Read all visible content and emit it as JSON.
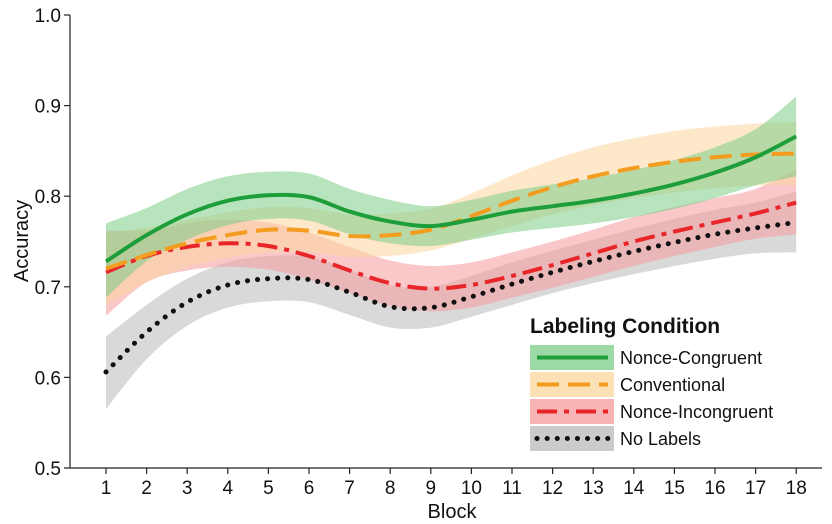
{
  "chart_data": {
    "type": "line",
    "xlabel": "Block",
    "ylabel": "Accuracy",
    "x": [
      1,
      2,
      3,
      4,
      5,
      6,
      7,
      8,
      9,
      10,
      11,
      12,
      13,
      14,
      15,
      16,
      17,
      18
    ],
    "xlim": [
      0.5,
      18.5
    ],
    "ylim": [
      0.5,
      1.0
    ],
    "y_ticks": [
      "0.5",
      "0.6",
      "0.7",
      "0.8",
      "0.9",
      "1.0"
    ],
    "x_ticks": [
      "1",
      "2",
      "3",
      "4",
      "5",
      "6",
      "7",
      "8",
      "9",
      "10",
      "11",
      "12",
      "13",
      "14",
      "15",
      "16",
      "17",
      "18"
    ],
    "grid": false,
    "legend": {
      "title": "Labeling Condition",
      "position": "bottom-right"
    },
    "series": [
      {
        "name": "Nonce-Congruent",
        "color": "#1e9e3a",
        "band_color": "#7ccc87",
        "dash": "solid",
        "values": [
          0.728,
          0.757,
          0.78,
          0.795,
          0.801,
          0.799,
          0.783,
          0.772,
          0.767,
          0.774,
          0.783,
          0.789,
          0.795,
          0.803,
          0.813,
          0.826,
          0.843,
          0.866
        ],
        "lower": [
          0.688,
          0.728,
          0.752,
          0.768,
          0.775,
          0.773,
          0.758,
          0.748,
          0.745,
          0.752,
          0.76,
          0.765,
          0.77,
          0.777,
          0.786,
          0.798,
          0.812,
          0.822
        ],
        "upper": [
          0.77,
          0.787,
          0.808,
          0.822,
          0.827,
          0.825,
          0.808,
          0.796,
          0.789,
          0.796,
          0.806,
          0.813,
          0.82,
          0.829,
          0.84,
          0.854,
          0.874,
          0.91
        ]
      },
      {
        "name": "Conventional",
        "color": "#f39c1f",
        "band_color": "#fbd69e",
        "dash": "long-dash",
        "values": [
          0.72,
          0.735,
          0.748,
          0.757,
          0.763,
          0.762,
          0.756,
          0.757,
          0.763,
          0.778,
          0.795,
          0.81,
          0.822,
          0.831,
          0.838,
          0.843,
          0.846,
          0.847
        ],
        "lower": [
          0.68,
          0.705,
          0.722,
          0.732,
          0.738,
          0.738,
          0.733,
          0.734,
          0.74,
          0.753,
          0.767,
          0.78,
          0.79,
          0.798,
          0.804,
          0.809,
          0.812,
          0.812
        ],
        "upper": [
          0.76,
          0.765,
          0.774,
          0.782,
          0.788,
          0.787,
          0.78,
          0.781,
          0.786,
          0.803,
          0.823,
          0.84,
          0.854,
          0.864,
          0.872,
          0.877,
          0.88,
          0.882
        ]
      },
      {
        "name": "Nonce-Incongruent",
        "color": "#e8262a",
        "band_color": "#f59a9c",
        "dash": "dash-dot",
        "values": [
          0.716,
          0.734,
          0.744,
          0.748,
          0.745,
          0.734,
          0.718,
          0.704,
          0.698,
          0.702,
          0.712,
          0.724,
          0.737,
          0.75,
          0.761,
          0.771,
          0.781,
          0.793
        ],
        "lower": [
          0.668,
          0.705,
          0.718,
          0.722,
          0.719,
          0.708,
          0.693,
          0.679,
          0.673,
          0.677,
          0.688,
          0.699,
          0.711,
          0.723,
          0.734,
          0.744,
          0.753,
          0.758
        ],
        "upper": [
          0.762,
          0.762,
          0.77,
          0.774,
          0.771,
          0.76,
          0.744,
          0.729,
          0.723,
          0.727,
          0.738,
          0.75,
          0.763,
          0.777,
          0.788,
          0.798,
          0.808,
          0.83
        ]
      },
      {
        "name": "No Labels",
        "color": "#111111",
        "band_color": "#b9b9b9",
        "dash": "dotted",
        "values": [
          0.606,
          0.65,
          0.683,
          0.702,
          0.709,
          0.708,
          0.694,
          0.678,
          0.677,
          0.689,
          0.703,
          0.716,
          0.728,
          0.739,
          0.749,
          0.758,
          0.765,
          0.771
        ],
        "lower": [
          0.565,
          0.62,
          0.657,
          0.677,
          0.684,
          0.683,
          0.669,
          0.655,
          0.655,
          0.667,
          0.68,
          0.693,
          0.704,
          0.714,
          0.723,
          0.731,
          0.737,
          0.738
        ],
        "upper": [
          0.645,
          0.68,
          0.709,
          0.727,
          0.734,
          0.733,
          0.719,
          0.702,
          0.7,
          0.712,
          0.727,
          0.74,
          0.752,
          0.764,
          0.775,
          0.785,
          0.793,
          0.805
        ]
      }
    ]
  }
}
